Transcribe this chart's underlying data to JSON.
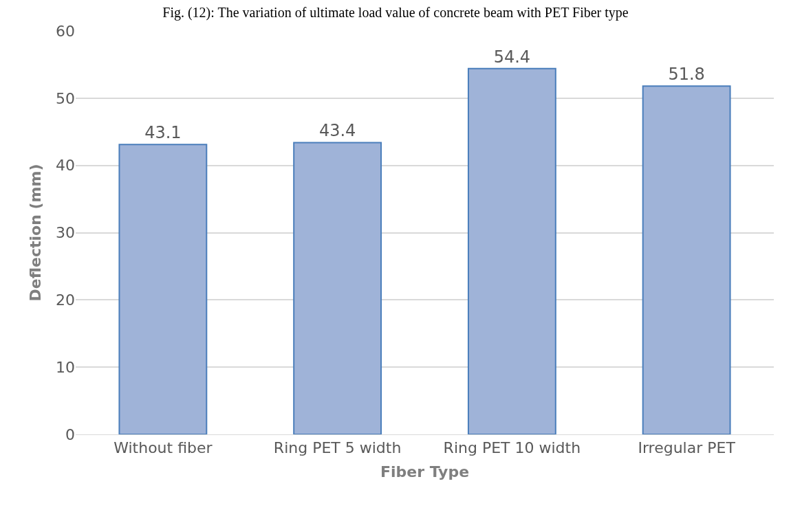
{
  "chart_data": {
    "type": "bar",
    "title": "Fig. (12): The variation of ultimate load value of concrete beam with PET Fiber type",
    "xlabel": "Fiber Type",
    "ylabel": "Deflection (mm)",
    "categories": [
      "Without fiber",
      "Ring PET 5 width",
      "Ring PET 10 width",
      "Irregular PET"
    ],
    "values": [
      43.1,
      43.4,
      54.4,
      51.8
    ],
    "color": "#9fb3d8",
    "data_labels": true,
    "ylim": [
      0,
      60
    ],
    "yticks": [
      0,
      10,
      20,
      30,
      40,
      50,
      60
    ],
    "grid": "y"
  }
}
